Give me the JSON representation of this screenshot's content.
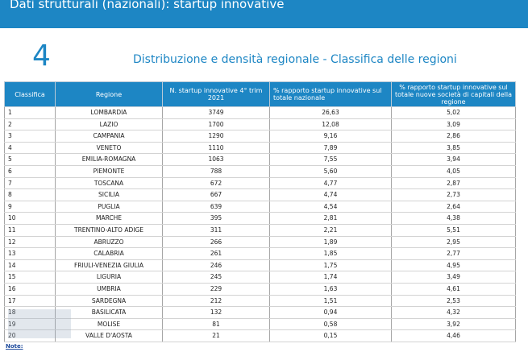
{
  "header": {
    "title": "Dati strutturali (nazionali): startup innovative"
  },
  "slide": {
    "number": "4",
    "subtitle": "Distribuzione e densità regionale - Classifica delle regioni"
  },
  "table": {
    "columns": [
      "Classifica",
      "Regione",
      "N. startup innovative 4° trim 2021",
      "% rapporto startup innovative sul totale nazionale",
      "% rapporto startup innovative sul totale nuove società di capitali della regione"
    ],
    "rows": [
      [
        "1",
        "LOMBARDIA",
        "3749",
        "26,63",
        "5,02"
      ],
      [
        "2",
        "LAZIO",
        "1700",
        "12,08",
        "3,09"
      ],
      [
        "3",
        "CAMPANIA",
        "1290",
        "9,16",
        "2,86"
      ],
      [
        "4",
        "VENETO",
        "1110",
        "7,89",
        "3,85"
      ],
      [
        "5",
        "EMILIA-ROMAGNA",
        "1063",
        "7,55",
        "3,94"
      ],
      [
        "6",
        "PIEMONTE",
        "788",
        "5,60",
        "4,05"
      ],
      [
        "7",
        "TOSCANA",
        "672",
        "4,77",
        "2,87"
      ],
      [
        "8",
        "SICILIA",
        "667",
        "4,74",
        "2,73"
      ],
      [
        "9",
        "PUGLIA",
        "639",
        "4,54",
        "2,64"
      ],
      [
        "10",
        "MARCHE",
        "395",
        "2,81",
        "4,38"
      ],
      [
        "11",
        "TRENTINO-ALTO ADIGE",
        "311",
        "2,21",
        "5,51"
      ],
      [
        "12",
        "ABRUZZO",
        "266",
        "1,89",
        "2,95"
      ],
      [
        "13",
        "CALABRIA",
        "261",
        "1,85",
        "2,77"
      ],
      [
        "14",
        "FRIULI-VENEZIA GIULIA",
        "246",
        "1,75",
        "4,95"
      ],
      [
        "15",
        "LIGURIA",
        "245",
        "1,74",
        "3,49"
      ],
      [
        "16",
        "UMBRIA",
        "229",
        "1,63",
        "4,61"
      ],
      [
        "17",
        "SARDEGNA",
        "212",
        "1,51",
        "2,53"
      ],
      [
        "18",
        "BASILICATA",
        "132",
        "0,94",
        "4,32"
      ],
      [
        "19",
        "MOLISE",
        "81",
        "0,58",
        "3,92"
      ],
      [
        "20",
        "VALLE D'AOSTA",
        "21",
        "0,15",
        "4,46"
      ]
    ]
  },
  "note": {
    "label": "Note:"
  },
  "colors": {
    "accent": "#1d86c4"
  }
}
